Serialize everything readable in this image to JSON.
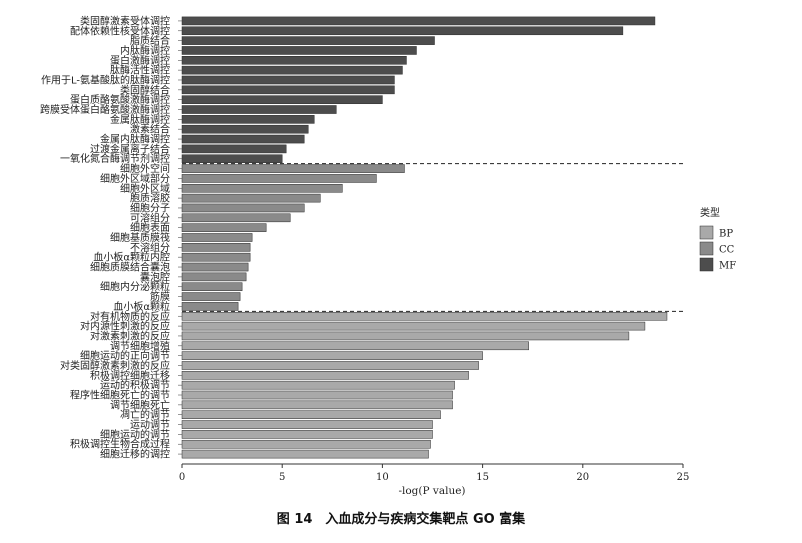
{
  "caption": "图 14　入血成分与疾病交集靶点 GO 富集",
  "chart_data": {
    "type": "bar",
    "orientation": "horizontal",
    "xlabel": "-log(P value)",
    "xlim": [
      0,
      25
    ],
    "xticks": [
      0,
      5,
      10,
      15,
      20,
      25
    ],
    "legend": {
      "title": "类型",
      "placement": "right"
    },
    "colors": {
      "BP": "#a9a9a9",
      "CC": "#8a8a8a",
      "MF": "#4d4d4d"
    },
    "groups": [
      {
        "name": "MF",
        "bars": [
          {
            "label": "类固醇激素受体调控",
            "value": 23.6
          },
          {
            "label": "配体依赖性核受体调控",
            "value": 22.0
          },
          {
            "label": "脂质结合",
            "value": 12.6
          },
          {
            "label": "内肽酶调控",
            "value": 11.7
          },
          {
            "label": "蛋白激酶调控",
            "value": 11.2
          },
          {
            "label": "肽酶活性调控",
            "value": 11.0
          },
          {
            "label": "作用于L-氨基酸肽的肽酶调控",
            "value": 10.6
          },
          {
            "label": "类固醇结合",
            "value": 10.6
          },
          {
            "label": "蛋白质酪氨酸激酶调控",
            "value": 10.0
          },
          {
            "label": "跨膜受体蛋白酪氨酸激酶调控",
            "value": 7.7
          },
          {
            "label": "金属肽酶调控",
            "value": 6.6
          },
          {
            "label": "激素结合",
            "value": 6.3
          },
          {
            "label": "金属内肽酶调控",
            "value": 6.1
          },
          {
            "label": "过渡金属离子结合",
            "value": 5.2
          },
          {
            "label": "一氧化氮合酶调节剂调控",
            "value": 5.0
          }
        ]
      },
      {
        "name": "CC",
        "bars": [
          {
            "label": "细胞外空间",
            "value": 11.1
          },
          {
            "label": "细胞外区域部分",
            "value": 9.7
          },
          {
            "label": "细胞外区域",
            "value": 8.0
          },
          {
            "label": "胞质溶胶",
            "value": 6.9
          },
          {
            "label": "细胞分子",
            "value": 6.1
          },
          {
            "label": "可溶组分",
            "value": 5.4
          },
          {
            "label": "细胞表面",
            "value": 4.2
          },
          {
            "label": "细胞基质膜筏",
            "value": 3.5
          },
          {
            "label": "不溶组分",
            "value": 3.4
          },
          {
            "label": "血小板α颗粒内腔",
            "value": 3.4
          },
          {
            "label": "细胞质膜结合囊泡",
            "value": 3.3
          },
          {
            "label": "囊泡腔",
            "value": 3.2
          },
          {
            "label": "细胞内分泌颗粒",
            "value": 3.0
          },
          {
            "label": "筋膜",
            "value": 2.9
          },
          {
            "label": "血小板α颗粒",
            "value": 2.8
          }
        ]
      },
      {
        "name": "BP",
        "bars": [
          {
            "label": "对有机物质的反应",
            "value": 24.2
          },
          {
            "label": "对内源性刺激的反应",
            "value": 23.1
          },
          {
            "label": "对激素刺激的反应",
            "value": 22.3
          },
          {
            "label": "调节细胞增殖",
            "value": 17.3
          },
          {
            "label": "细胞运动的正向调节",
            "value": 15.0
          },
          {
            "label": "对类固醇激素刺激的反应",
            "value": 14.8
          },
          {
            "label": "积极调控细胞迁移",
            "value": 14.3
          },
          {
            "label": "运动的积极调节",
            "value": 13.6
          },
          {
            "label": "程序性细胞死亡的调节",
            "value": 13.5
          },
          {
            "label": "调节细胞死亡",
            "value": 13.5
          },
          {
            "label": "凋亡的调节",
            "value": 12.9
          },
          {
            "label": "运动调节",
            "value": 12.5
          },
          {
            "label": "细胞运动的调节",
            "value": 12.5
          },
          {
            "label": "积极调控生物合成过程",
            "value": 12.4
          },
          {
            "label": "细胞迁移的调控",
            "value": 12.3
          }
        ]
      }
    ]
  }
}
